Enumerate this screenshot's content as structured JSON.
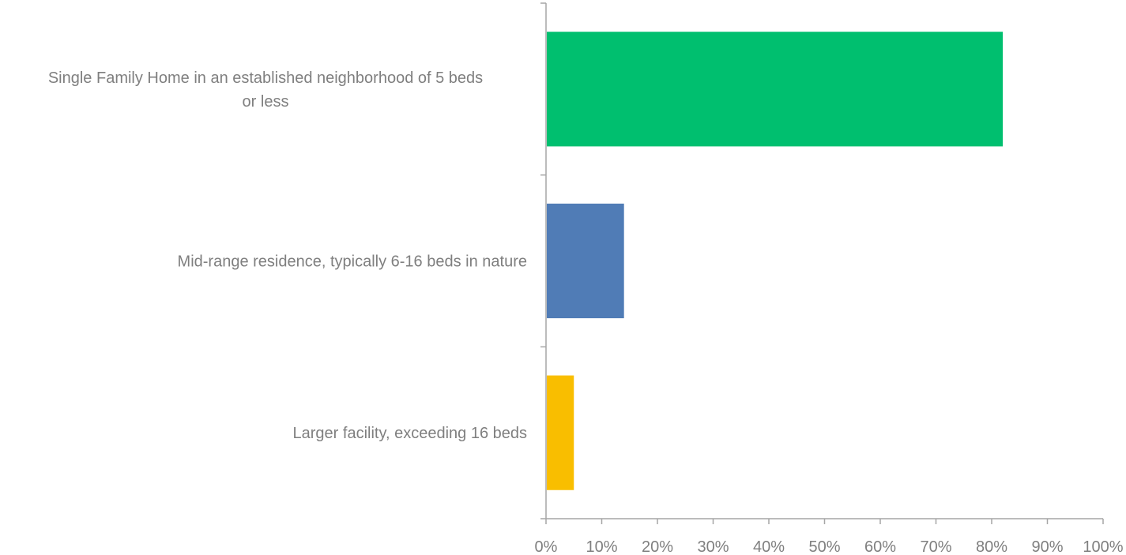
{
  "chart_data": {
    "type": "bar",
    "orientation": "horizontal",
    "categories": [
      [
        "Single Family Home in an established neighborhood of 5 beds",
        "or less"
      ],
      [
        "Mid-range residence, typically 6-16 beds in nature"
      ],
      [
        "Larger facility, exceeding 16 beds"
      ]
    ],
    "values": [
      82,
      14,
      5
    ],
    "colors": [
      "#00bf6f",
      "#507cb6",
      "#f9be00"
    ],
    "xlim": [
      0,
      100
    ],
    "xticks": [
      "0%",
      "10%",
      "20%",
      "30%",
      "40%",
      "50%",
      "60%",
      "70%",
      "80%",
      "90%",
      "100%"
    ],
    "title": "",
    "xlabel": "",
    "ylabel": "",
    "grid": false,
    "legend": "none"
  }
}
